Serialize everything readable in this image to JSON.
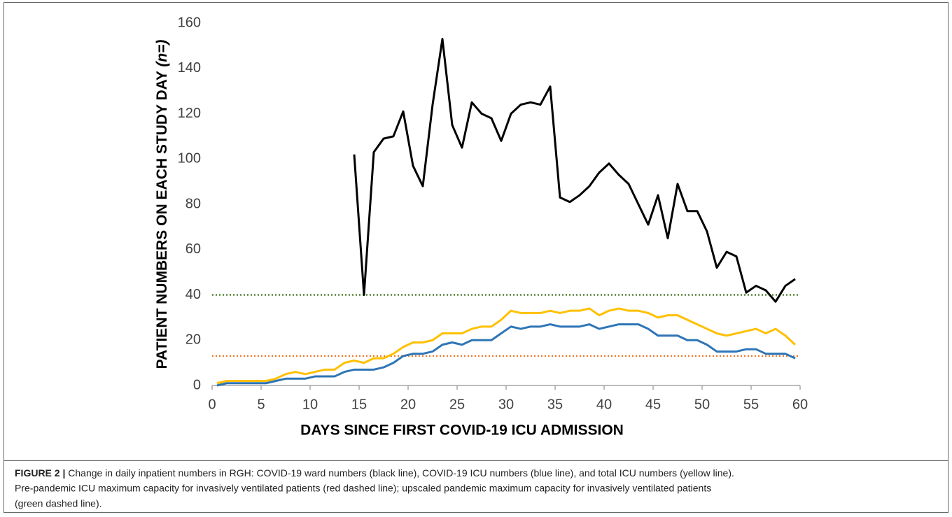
{
  "chart_data": {
    "type": "line",
    "xlabel": "DAYS SINCE FIRST COVID-19 ICU ADMISSION",
    "ylabel": "PATIENT NUMBERS ON EACH STUDY DAY ",
    "ylabel_italic": "(n=)",
    "x": [
      0.5,
      1.5,
      2.5,
      3.5,
      4.5,
      5.5,
      6.5,
      7.5,
      8.5,
      9.5,
      10.5,
      11.5,
      12.5,
      13.5,
      14.5,
      15.5,
      16.5,
      17.5,
      18.5,
      19.5,
      20.5,
      21.5,
      22.5,
      23.5,
      24.5,
      25.5,
      26.5,
      27.5,
      28.5,
      29.5,
      30.5,
      31.5,
      32.5,
      33.5,
      34.5,
      35.5,
      36.5,
      37.5,
      38.5,
      39.5,
      40.5,
      41.5,
      42.5,
      43.5,
      44.5,
      45.5,
      46.5,
      47.5,
      48.5,
      49.5,
      50.5,
      51.5,
      52.5,
      53.5,
      54.5,
      55.5,
      56.5,
      57.5,
      58.5,
      59.5
    ],
    "series": [
      {
        "color": "#000000",
        "values": [
          null,
          null,
          null,
          null,
          null,
          null,
          null,
          null,
          null,
          null,
          null,
          null,
          null,
          null,
          102,
          40,
          103,
          109,
          110,
          121,
          97,
          88,
          124,
          153,
          115,
          105,
          125,
          120,
          118,
          108,
          120,
          124,
          125,
          124,
          132,
          83,
          81,
          84,
          88,
          94,
          98,
          93,
          89,
          80,
          71,
          84,
          65,
          89,
          77,
          77,
          68,
          52,
          59,
          57,
          41,
          44,
          42,
          37,
          44,
          47
        ]
      },
      {
        "color": "#ffc000",
        "values": [
          1,
          2,
          2,
          2,
          2,
          2,
          3,
          5,
          6,
          5,
          6,
          7,
          7,
          10,
          11,
          10,
          12,
          12,
          14,
          17,
          19,
          19,
          20,
          23,
          23,
          23,
          25,
          26,
          26,
          29,
          33,
          32,
          32,
          32,
          33,
          32,
          33,
          33,
          34,
          31,
          33,
          34,
          33,
          33,
          32,
          30,
          31,
          31,
          29,
          27,
          25,
          23,
          22,
          23,
          24,
          25,
          23,
          25,
          22,
          18
        ]
      },
      {
        "color": "#2e75b6",
        "values": [
          0,
          1,
          1,
          1,
          1,
          1,
          2,
          3,
          3,
          3,
          4,
          4,
          4,
          6,
          7,
          7,
          7,
          8,
          10,
          13,
          14,
          14,
          15,
          18,
          19,
          18,
          20,
          20,
          20,
          23,
          26,
          25,
          26,
          26,
          27,
          26,
          26,
          26,
          27,
          25,
          26,
          27,
          27,
          27,
          25,
          22,
          22,
          22,
          20,
          20,
          18,
          15,
          15,
          15,
          16,
          16,
          14,
          14,
          14,
          12
        ]
      }
    ],
    "reference_lines": [
      {
        "value": 40,
        "color": "#548235",
        "style": "dotted"
      },
      {
        "value": 13,
        "color": "#ed7d31",
        "style": "dotted"
      }
    ],
    "xlim": [
      0,
      60
    ],
    "xticks": [
      0,
      5,
      10,
      15,
      20,
      25,
      30,
      35,
      40,
      45,
      50,
      55,
      60
    ],
    "ylim": [
      0,
      160
    ],
    "yticks": [
      0,
      20,
      40,
      60,
      80,
      100,
      120,
      140,
      160
    ],
    "grid": false
  },
  "caption": {
    "label": "FIGURE 2 |",
    "lines": [
      " Change in daily inpatient numbers in RGH: COVID-19 ward numbers (black line), COVID-19 ICU numbers (blue line), and total ICU numbers (yellow line).",
      "Pre-pandemic ICU maximum capacity for invasively ventilated patients (red dashed line); upscaled pandemic maximum capacity for invasively ventilated patients",
      "(green dashed line)."
    ]
  }
}
